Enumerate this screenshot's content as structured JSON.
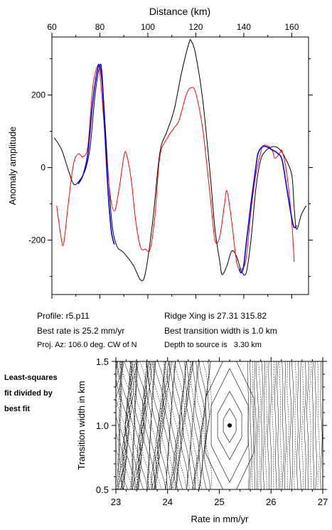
{
  "top_chart": {
    "xlabel": "Distance (km)",
    "ylabel": "Anomaly amplitude",
    "x_ticks": [
      60,
      80,
      100,
      120,
      140,
      160
    ],
    "y_ticks": [
      -200,
      0,
      200
    ]
  },
  "info": {
    "profile": "Profile: r5.p11",
    "best_rate": "Best rate is 25.2 mm/yr",
    "proj_az": "Proj. Az: 106.0 deg. CW of N",
    "ridge_xing": "Ridge Xing is 27.31 315.82",
    "best_width": "Best transition width is 1.0 km",
    "depth": "Depth to source is   3.30 km"
  },
  "side_label": [
    "Least-squares",
    "fit divided by",
    "best fit"
  ],
  "bottom_chart": {
    "xlabel": "Rate in mm/yr",
    "ylabel": "Transition width in km",
    "x_ticks": [
      "23",
      "24",
      "25",
      "26",
      "27"
    ],
    "y_ticks": [
      "0.5",
      "1.0",
      "1.5"
    ]
  },
  "chart_data": [
    {
      "type": "line",
      "title": "",
      "xlabel": "Distance (km)",
      "ylabel": "Anomaly amplitude",
      "xlim": [
        60,
        167
      ],
      "ylim": [
        -350,
        360
      ],
      "grid": false,
      "series": [
        {
          "color": "#000000",
          "points": [
            [
              61,
              82
            ],
            [
              64,
              50
            ],
            [
              67,
              -10
            ],
            [
              69,
              -45
            ],
            [
              71,
              -40
            ],
            [
              74,
              -5
            ],
            [
              76,
              60
            ],
            [
              78,
              200
            ],
            [
              80,
              280
            ],
            [
              81,
              250
            ],
            [
              83,
              30
            ],
            [
              85,
              -150
            ],
            [
              87,
              -215
            ],
            [
              90,
              -235
            ],
            [
              94,
              -270
            ],
            [
              97,
              -310
            ],
            [
              99,
              -290
            ],
            [
              102,
              -150
            ],
            [
              105,
              40
            ],
            [
              108,
              100
            ],
            [
              111,
              160
            ],
            [
              114,
              260
            ],
            [
              117,
              340
            ],
            [
              118,
              350
            ],
            [
              120,
              310
            ],
            [
              123,
              180
            ],
            [
              126,
              -20
            ],
            [
              128,
              -170
            ],
            [
              130,
              -260
            ],
            [
              131,
              -295
            ],
            [
              133,
              -270
            ],
            [
              135,
              -230
            ],
            [
              137,
              -245
            ],
            [
              139,
              -285
            ],
            [
              141,
              -290
            ],
            [
              143,
              -200
            ],
            [
              145,
              -60
            ],
            [
              147,
              20
            ],
            [
              149,
              45
            ],
            [
              151,
              55
            ],
            [
              153,
              58
            ],
            [
              155,
              50
            ],
            [
              157,
              30
            ],
            [
              160,
              -20
            ],
            [
              161,
              -110
            ],
            [
              162,
              -170
            ],
            [
              164,
              -130
            ],
            [
              166,
              -105
            ]
          ]
        },
        {
          "color": "#ff0000",
          "points": [
            [
              62,
              -105
            ],
            [
              64,
              -200
            ],
            [
              65,
              -205
            ],
            [
              67,
              -90
            ],
            [
              69,
              10
            ],
            [
              71,
              38
            ],
            [
              73,
              30
            ],
            [
              75,
              60
            ],
            [
              77,
              220
            ],
            [
              79,
              280
            ],
            [
              80,
              260
            ],
            [
              82,
              100
            ],
            [
              84,
              -60
            ],
            [
              86,
              -120
            ],
            [
              88,
              -60
            ],
            [
              90,
              30
            ],
            [
              91,
              38
            ],
            [
              93,
              -30
            ],
            [
              95,
              -150
            ],
            [
              97,
              -220
            ],
            [
              99,
              -225
            ],
            [
              101,
              -225
            ],
            [
              103,
              -130
            ],
            [
              105,
              30
            ],
            [
              108,
              80
            ],
            [
              111,
              110
            ],
            [
              113,
              130
            ],
            [
              116,
              200
            ],
            [
              118,
              220
            ],
            [
              120,
              205
            ],
            [
              123,
              100
            ],
            [
              126,
              -80
            ],
            [
              128,
              -200
            ],
            [
              130,
              -190
            ],
            [
              132,
              -100
            ],
            [
              133,
              -65
            ],
            [
              135,
              -150
            ],
            [
              137,
              -260
            ],
            [
              139,
              -280
            ],
            [
              141,
              -250
            ],
            [
              143,
              -120
            ],
            [
              145,
              -20
            ],
            [
              147,
              40
            ],
            [
              148,
              60
            ],
            [
              150,
              60
            ],
            [
              152,
              45
            ],
            [
              153,
              25
            ],
            [
              155,
              40
            ],
            [
              156,
              45
            ],
            [
              158,
              -20
            ],
            [
              160,
              -150
            ],
            [
              161,
              -260
            ]
          ]
        },
        {
          "color": "#0000ff",
          "points": [
            [
              71,
              -45
            ],
            [
              73,
              -20
            ],
            [
              75,
              40
            ],
            [
              77,
              180
            ],
            [
              79,
              270
            ],
            [
              80,
              280
            ],
            [
              81,
              230
            ],
            [
              82,
              110
            ],
            [
              83,
              -20
            ],
            [
              84,
              -120
            ],
            [
              85,
              -185
            ],
            [
              86,
              -212
            ],
            [
              138,
              -280
            ],
            [
              139,
              -290
            ],
            [
              140,
              -270
            ],
            [
              141,
              -210
            ],
            [
              143,
              -100
            ],
            [
              145,
              0
            ],
            [
              146,
              40
            ],
            [
              148,
              58
            ],
            [
              150,
              56
            ],
            [
              152,
              48
            ],
            [
              154,
              40
            ],
            [
              156,
              20
            ],
            [
              158,
              -60
            ],
            [
              160,
              -140
            ],
            [
              161,
              -165
            ],
            [
              162,
              -160
            ]
          ]
        }
      ]
    },
    {
      "type": "contour",
      "title": "",
      "xlabel": "Rate in mm/yr",
      "ylabel": "Transition width in km",
      "xlim": [
        23,
        27
      ],
      "ylim": [
        0.5,
        1.5
      ],
      "grid": false,
      "best_fit_point": {
        "rate": 25.2,
        "width": 1.0
      },
      "contour_center": {
        "rate": 25.2,
        "width": 1.0
      }
    }
  ]
}
